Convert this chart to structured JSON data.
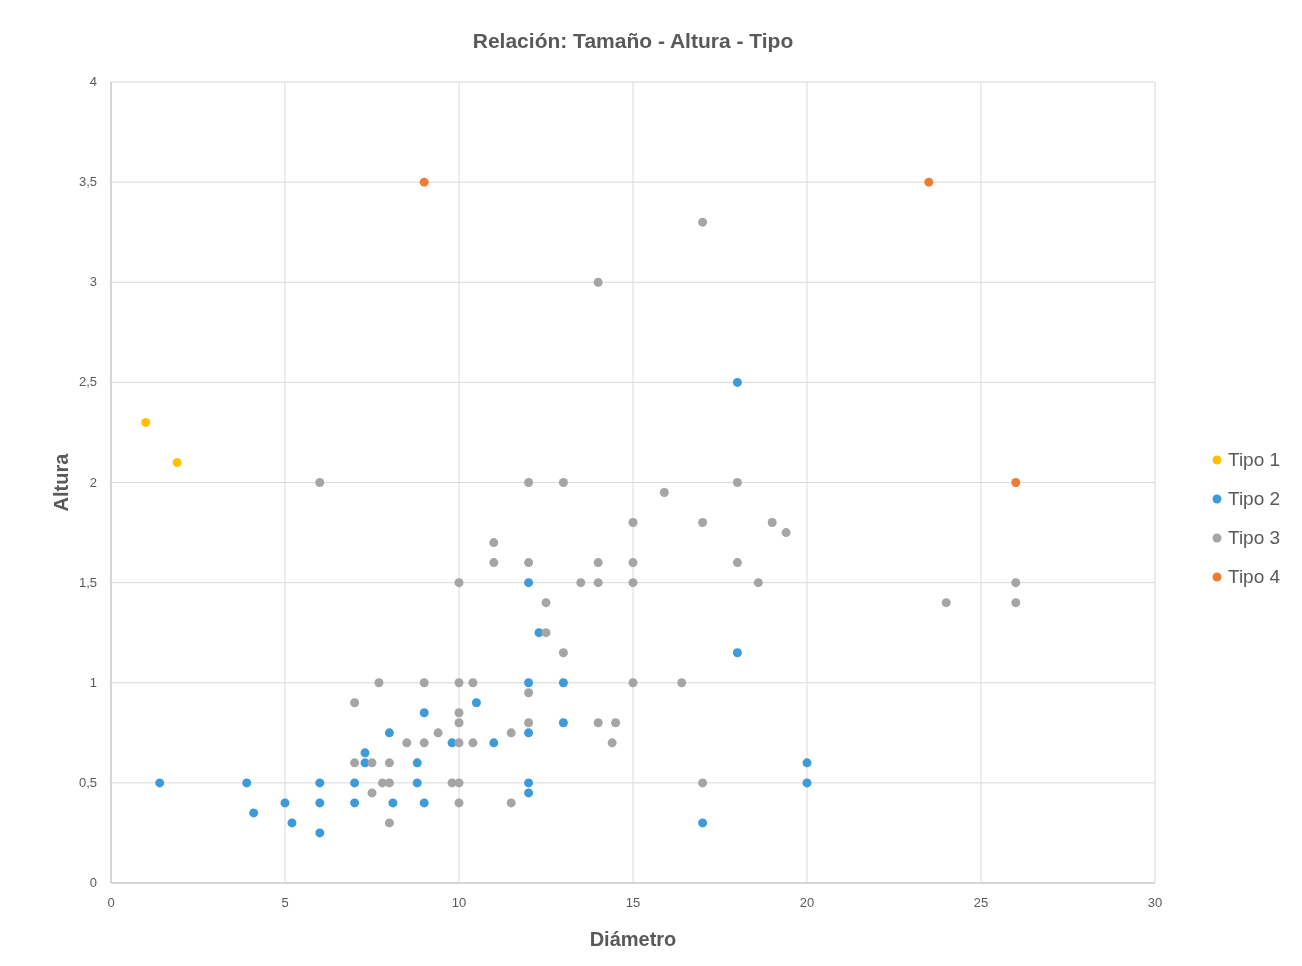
{
  "chart_data": {
    "type": "scatter",
    "title": "Relación: Tamaño - Altura - Tipo",
    "xlabel": "Diámetro",
    "ylabel": "Altura",
    "xlim": [
      0,
      30
    ],
    "xticks": [
      0,
      5,
      10,
      15,
      20,
      25,
      30
    ],
    "ylim": [
      0,
      4
    ],
    "yticks": [
      0,
      {
        "value": 0.5,
        "label": "0,5"
      },
      1,
      {
        "value": 1.5,
        "label": "1,5"
      },
      2,
      {
        "value": 2.5,
        "label": "2,5"
      },
      3,
      {
        "value": 3.5,
        "label": "3,5"
      },
      4
    ],
    "grid": true,
    "legend": "right",
    "marker": "circle",
    "series": [
      {
        "name": "Tipo 1",
        "color": "#ffc000",
        "x": [
          1,
          1.9
        ],
        "values": [
          2.3,
          2.1
        ]
      },
      {
        "name": "Tipo 2",
        "color": "#3d9bd9",
        "x": [
          1.4,
          3.9,
          4.1,
          5,
          5.2,
          6,
          6,
          6,
          7,
          7,
          7.3,
          7.3,
          8,
          8.1,
          8.8,
          8.8,
          9,
          9,
          9.8,
          10.5,
          11,
          12,
          12,
          12,
          12,
          12,
          12.3,
          13,
          13,
          18,
          18,
          17,
          20,
          20
        ],
        "values": [
          0.5,
          0.5,
          0.35,
          0.4,
          0.3,
          0.5,
          0.4,
          0.25,
          0.5,
          0.4,
          0.65,
          0.6,
          0.75,
          0.4,
          0.6,
          0.5,
          0.85,
          0.4,
          0.7,
          0.9,
          0.7,
          1.5,
          1.0,
          0.75,
          0.5,
          0.45,
          1.25,
          1.0,
          0.8,
          2.5,
          1.15,
          0.3,
          0.6,
          0.5
        ]
      },
      {
        "name": "Tipo 3",
        "color": "#a5a5a5",
        "x": [
          6,
          7,
          7,
          7.5,
          7.5,
          7.7,
          7.8,
          8,
          8,
          8,
          8.5,
          9,
          9,
          9.4,
          9.8,
          10,
          10,
          10,
          10,
          10,
          10,
          10,
          10.4,
          10.4,
          11,
          11,
          11.5,
          11.5,
          12,
          12,
          12,
          12,
          12.5,
          12.5,
          13,
          13,
          13.5,
          14,
          14,
          14,
          14,
          14.4,
          14.5,
          15,
          15,
          15,
          15,
          15.9,
          16.4,
          17,
          17,
          17,
          18,
          18,
          18.6,
          19,
          19.4,
          24,
          26,
          26
        ],
        "values": [
          2.0,
          0.9,
          0.6,
          0.45,
          0.6,
          1.0,
          0.5,
          0.5,
          0.6,
          0.3,
          0.7,
          1.0,
          0.7,
          0.75,
          0.5,
          0.5,
          1.5,
          1.0,
          0.85,
          0.8,
          0.7,
          0.4,
          1.0,
          0.7,
          1.7,
          1.6,
          0.75,
          0.4,
          2.0,
          1.6,
          0.95,
          0.8,
          1.4,
          1.25,
          2.0,
          1.15,
          1.5,
          3.0,
          1.6,
          1.5,
          0.8,
          0.7,
          0.8,
          1.8,
          1.6,
          1.5,
          1.0,
          1.95,
          1.0,
          3.3,
          1.8,
          0.5,
          2.0,
          1.6,
          1.5,
          1.8,
          1.75,
          1.4,
          1.5,
          1.4
        ]
      },
      {
        "name": "Tipo 4",
        "color": "#ed7d31",
        "x": [
          9,
          23.5,
          26
        ],
        "values": [
          3.5,
          3.5,
          2.0
        ]
      }
    ]
  }
}
